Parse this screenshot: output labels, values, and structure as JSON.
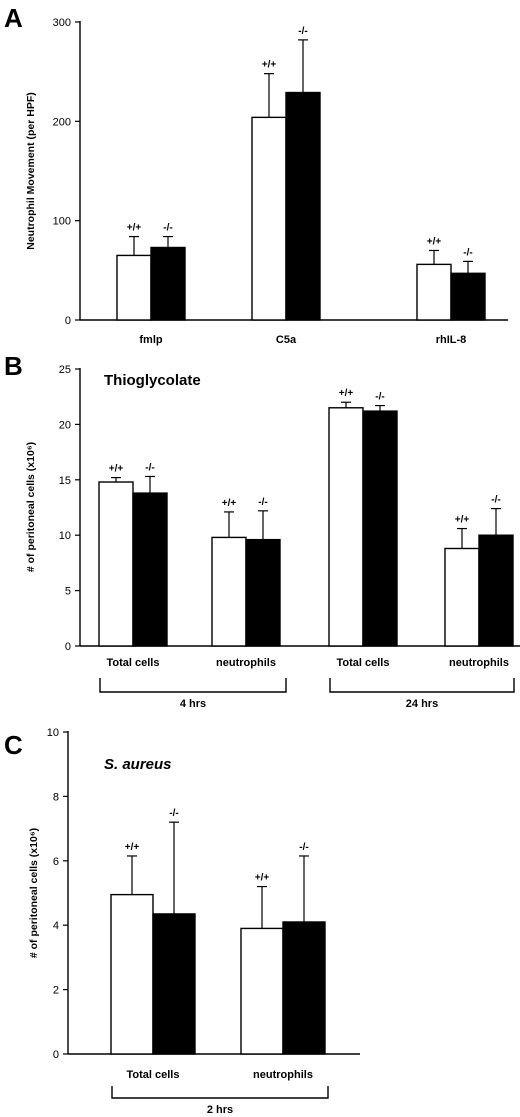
{
  "chart_data": [
    {
      "type": "bar",
      "panel": "A",
      "title": "",
      "ylabel": "Neutrophil Movement (per HPF)",
      "ylim": [
        0,
        300
      ],
      "yticks": [
        "0",
        "100",
        "200",
        "300"
      ],
      "categories": [
        "fmlp",
        "C5a",
        "rhIL-8"
      ],
      "bar_labels": [
        "+/+",
        "-/-"
      ],
      "series": [
        {
          "values": [
            65,
            204,
            56
          ],
          "errors": [
            19,
            44,
            14
          ],
          "color": "#ffffff"
        },
        {
          "values": [
            73,
            229,
            47
          ],
          "errors": [
            11,
            53,
            12
          ],
          "color": "#000000"
        }
      ]
    },
    {
      "type": "bar",
      "panel": "B",
      "title": "Thioglycolate",
      "ylabel": "# of peritoneal cells (x10⁶)",
      "ylim": [
        0,
        25
      ],
      "yticks": [
        "0",
        "5",
        "10",
        "15",
        "20",
        "25"
      ],
      "categories": [
        "Total cells",
        "neutrophils",
        "Total cells",
        "neutrophils"
      ],
      "groups": [
        "4 hrs",
        "24 hrs"
      ],
      "bar_labels": [
        "+/+",
        "-/-"
      ],
      "series": [
        {
          "values": [
            14.8,
            9.8,
            21.5,
            8.8
          ],
          "errors": [
            0.4,
            2.3,
            0.5,
            1.8
          ],
          "color": "#ffffff"
        },
        {
          "values": [
            13.8,
            9.6,
            21.2,
            10.0
          ],
          "errors": [
            1.5,
            2.6,
            0.5,
            2.4
          ],
          "color": "#000000"
        }
      ]
    },
    {
      "type": "bar",
      "panel": "C",
      "title": "S. aureus",
      "ylabel": "# of peritoneal cells (x10⁶)",
      "ylim": [
        0,
        10
      ],
      "yticks": [
        "0",
        "2",
        "4",
        "6",
        "8",
        "10"
      ],
      "categories": [
        "Total cells",
        "neutrophils"
      ],
      "groups": [
        "2 hrs"
      ],
      "bar_labels": [
        "+/+",
        "-/-"
      ],
      "series": [
        {
          "values": [
            4.95,
            3.9
          ],
          "errors": [
            1.2,
            1.3
          ],
          "color": "#ffffff"
        },
        {
          "values": [
            4.35,
            4.1
          ],
          "errors": [
            2.85,
            2.05
          ],
          "color": "#000000"
        }
      ]
    }
  ]
}
